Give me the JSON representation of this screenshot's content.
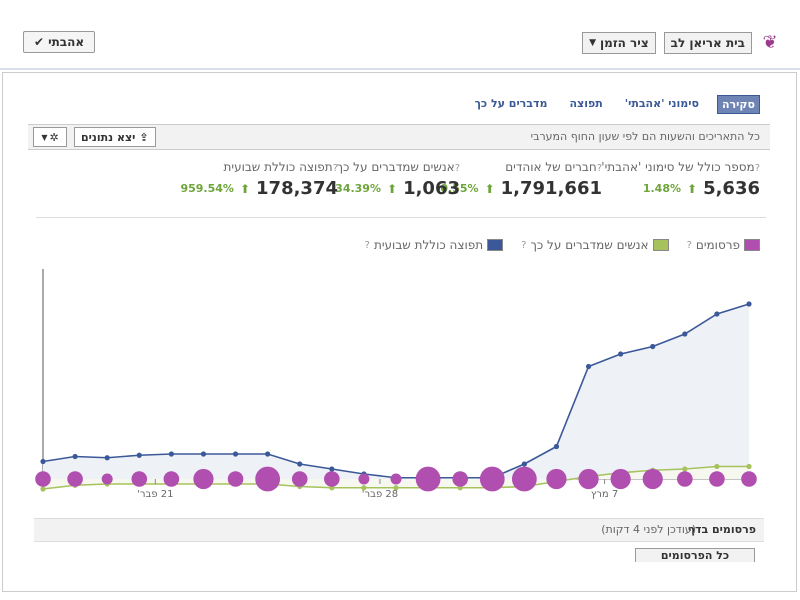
{
  "header": {
    "liked_label": "אהבתי",
    "liked_icon": "check-icon",
    "page_name": "בית אריאן לב",
    "timeline_label": "ציר הזמן"
  },
  "tabs": [
    {
      "label": "סקירה",
      "active": true
    },
    {
      "label": "סימוני 'אהבתי'",
      "active": false
    },
    {
      "label": "תפוצה",
      "active": false
    },
    {
      "label": "מדברים על כך",
      "active": false
    }
  ],
  "infobar": {
    "text": "כל התאריכים והשעות הם לפי שעון החוף המערבי",
    "export_label": "יצא נתונים"
  },
  "stats": [
    {
      "label": "מספר כולל של סימוני 'אהבתי'",
      "value": "5,636",
      "pct": "1.48%"
    },
    {
      "label": "חברים של אוהדים",
      "value": "1,791,661",
      "pct": "0.55%"
    },
    {
      "label": "אנשים שמדברים על כך",
      "value": "1,063",
      "pct": "34.39%"
    },
    {
      "label": "תפוצה כוללת שבועית",
      "value": "178,374",
      "pct": "959.54%"
    }
  ],
  "legend": [
    {
      "label": "פרסומים",
      "color": "#b04fb0"
    },
    {
      "label": "אנשים שמדברים על כך",
      "color": "#a5c25c"
    },
    {
      "label": "תפוצה כוללת שבועית",
      "color": "#3b5998"
    }
  ],
  "chart_data": {
    "type": "line",
    "x_tick_labels": [
      "21 פבר'",
      "28 פבר'",
      "7 מרץ"
    ],
    "x_tick_index": [
      3,
      10,
      17
    ],
    "series": [
      {
        "name": "תפוצה כוללת שבועית",
        "color": "#3b5998",
        "values": [
          7,
          9,
          8.5,
          9.5,
          10,
          10,
          10,
          10,
          6,
          4,
          2,
          0.5,
          0.5,
          0.5,
          0.5,
          6,
          13,
          45,
          50,
          53,
          58,
          66,
          70
        ]
      },
      {
        "name": "אנשים שמדברים על כך",
        "color": "#a5c25c",
        "values": [
          -4,
          -2.5,
          -2,
          -2,
          -2,
          -2,
          -2,
          -2,
          -3,
          -3.5,
          -3.5,
          -3.5,
          -3.5,
          -3.5,
          -3.5,
          -3,
          -1,
          1,
          2.5,
          3.5,
          4,
          5,
          5
        ]
      },
      {
        "name": "פרסומים",
        "color": "#b04fb0",
        "values": [
          1,
          1,
          0,
          1,
          1,
          2,
          1,
          3,
          1,
          1,
          0,
          0,
          3,
          1,
          3,
          3,
          2,
          2,
          2,
          2,
          1,
          1,
          1
        ]
      }
    ]
  },
  "posts_bar": {
    "title": "פרסומים בדף",
    "updated": "(עודכן לפני 4 דקות)",
    "all_posts": "כל הפרסומים"
  }
}
